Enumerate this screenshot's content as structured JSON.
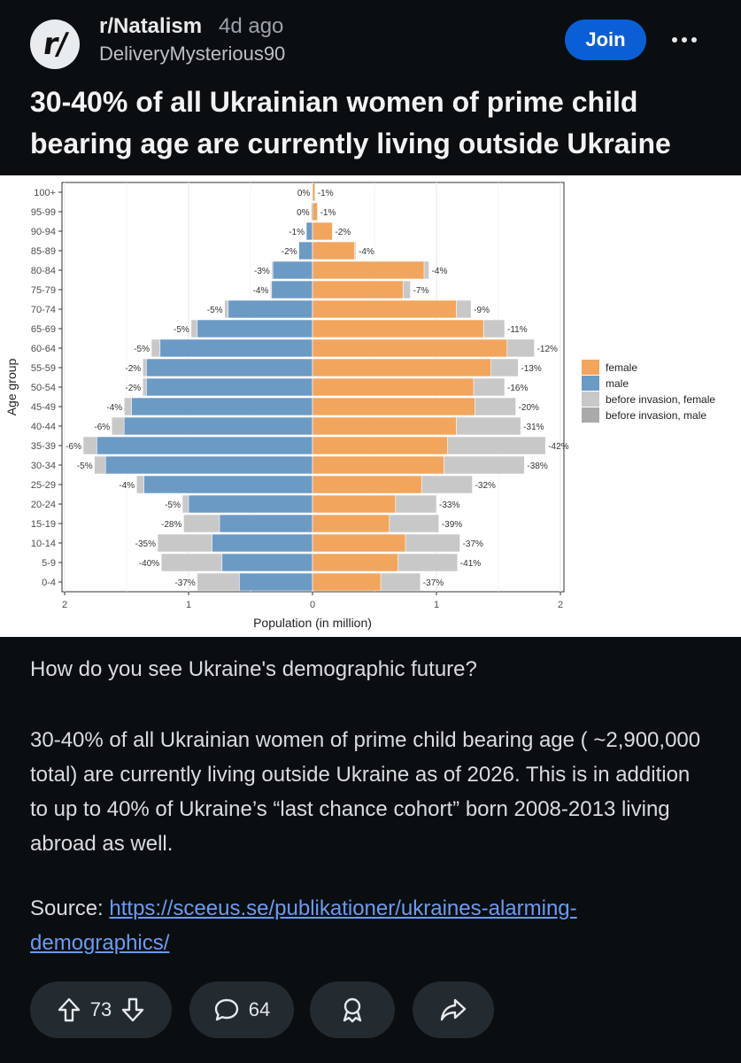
{
  "post": {
    "subreddit": "r/Natalism",
    "age": "4d ago",
    "author": "DeliveryMysterious90",
    "join_label": "Join",
    "avatar_text": "r/",
    "title": "30-40% of all Ukrainian women of prime child bearing age are currently living outside Ukraine",
    "question": "How do you see Ukraine's demographic future?",
    "paragraph": "30-40% of all Ukrainian women of prime child bearing age ( ~2,900,000 total) are currently living outside Ukraine as of 2026. This is in addition to up to 40% of Ukraine’s “last chance cohort” born 2008-2013 living abroad as well.",
    "source_label": "Source: ",
    "source_link": "https://sceeus.se/publikationer/ukraines-alarming-demographics/"
  },
  "actions": {
    "upvotes": "73",
    "comments": "64"
  },
  "colors": {
    "female": "#f2a55c",
    "male": "#6b9ac5",
    "before_invasion": "#c8c8c8",
    "join": "#0a5fd6",
    "link": "#6a9bf2"
  },
  "chart_data": {
    "type": "bar",
    "orientation": "horizontal-population-pyramid",
    "title": "",
    "xlabel": "Population (in million)",
    "ylabel": "Age group",
    "xlim": [
      -2,
      2
    ],
    "x_ticks": [
      "2",
      "1",
      "0",
      "1",
      "2"
    ],
    "grid": true,
    "legend_position": "right",
    "legend": [
      "female",
      "male",
      "before invasion, female",
      "before invasion, male"
    ],
    "categories": [
      "100+",
      "95-99",
      "90-94",
      "85-89",
      "80-84",
      "75-79",
      "70-74",
      "65-69",
      "60-64",
      "55-59",
      "50-54",
      "45-49",
      "40-44",
      "35-39",
      "30-34",
      "25-29",
      "20-24",
      "15-19",
      "10-14",
      "5-9",
      "0-4"
    ],
    "series": [
      {
        "name": "male",
        "values": [
          0.005,
          0.01,
          0.05,
          0.11,
          0.32,
          0.33,
          0.68,
          0.93,
          1.23,
          1.34,
          1.34,
          1.46,
          1.52,
          1.74,
          1.67,
          1.36,
          1.0,
          0.75,
          0.81,
          0.73,
          0.59
        ]
      },
      {
        "name": "before invasion, male",
        "values": [
          0.005,
          0.01,
          0.05,
          0.11,
          0.33,
          0.34,
          0.71,
          0.98,
          1.3,
          1.37,
          1.37,
          1.52,
          1.62,
          1.85,
          1.76,
          1.42,
          1.05,
          1.04,
          1.25,
          1.22,
          0.93
        ]
      },
      {
        "name": "female",
        "values": [
          0.02,
          0.04,
          0.16,
          0.34,
          0.9,
          0.73,
          1.16,
          1.38,
          1.57,
          1.44,
          1.3,
          1.31,
          1.16,
          1.09,
          1.06,
          0.88,
          0.67,
          0.62,
          0.75,
          0.69,
          0.55
        ]
      },
      {
        "name": "before invasion, female",
        "values": [
          0.02,
          0.04,
          0.16,
          0.35,
          0.94,
          0.79,
          1.28,
          1.55,
          1.79,
          1.66,
          1.55,
          1.64,
          1.68,
          1.88,
          1.71,
          1.29,
          1.0,
          1.02,
          1.19,
          1.17,
          0.87
        ]
      }
    ],
    "labels_male": [
      "0%",
      "0%",
      "-1%",
      "-2%",
      "-3%",
      "-4%",
      "-5%",
      "-5%",
      "-5%",
      "-2%",
      "-2%",
      "-4%",
      "-6%",
      "-6%",
      "-5%",
      "-4%",
      "-5%",
      "-28%",
      "-35%",
      "-40%",
      "-37%"
    ],
    "labels_female": [
      "-1%",
      "-1%",
      "-2%",
      "-4%",
      "-4%",
      "-7%",
      "-9%",
      "-11%",
      "-12%",
      "-13%",
      "-16%",
      "-20%",
      "-31%",
      "-42%",
      "-38%",
      "-32%",
      "-33%",
      "-39%",
      "-37%",
      "-41%",
      "-37%"
    ]
  }
}
